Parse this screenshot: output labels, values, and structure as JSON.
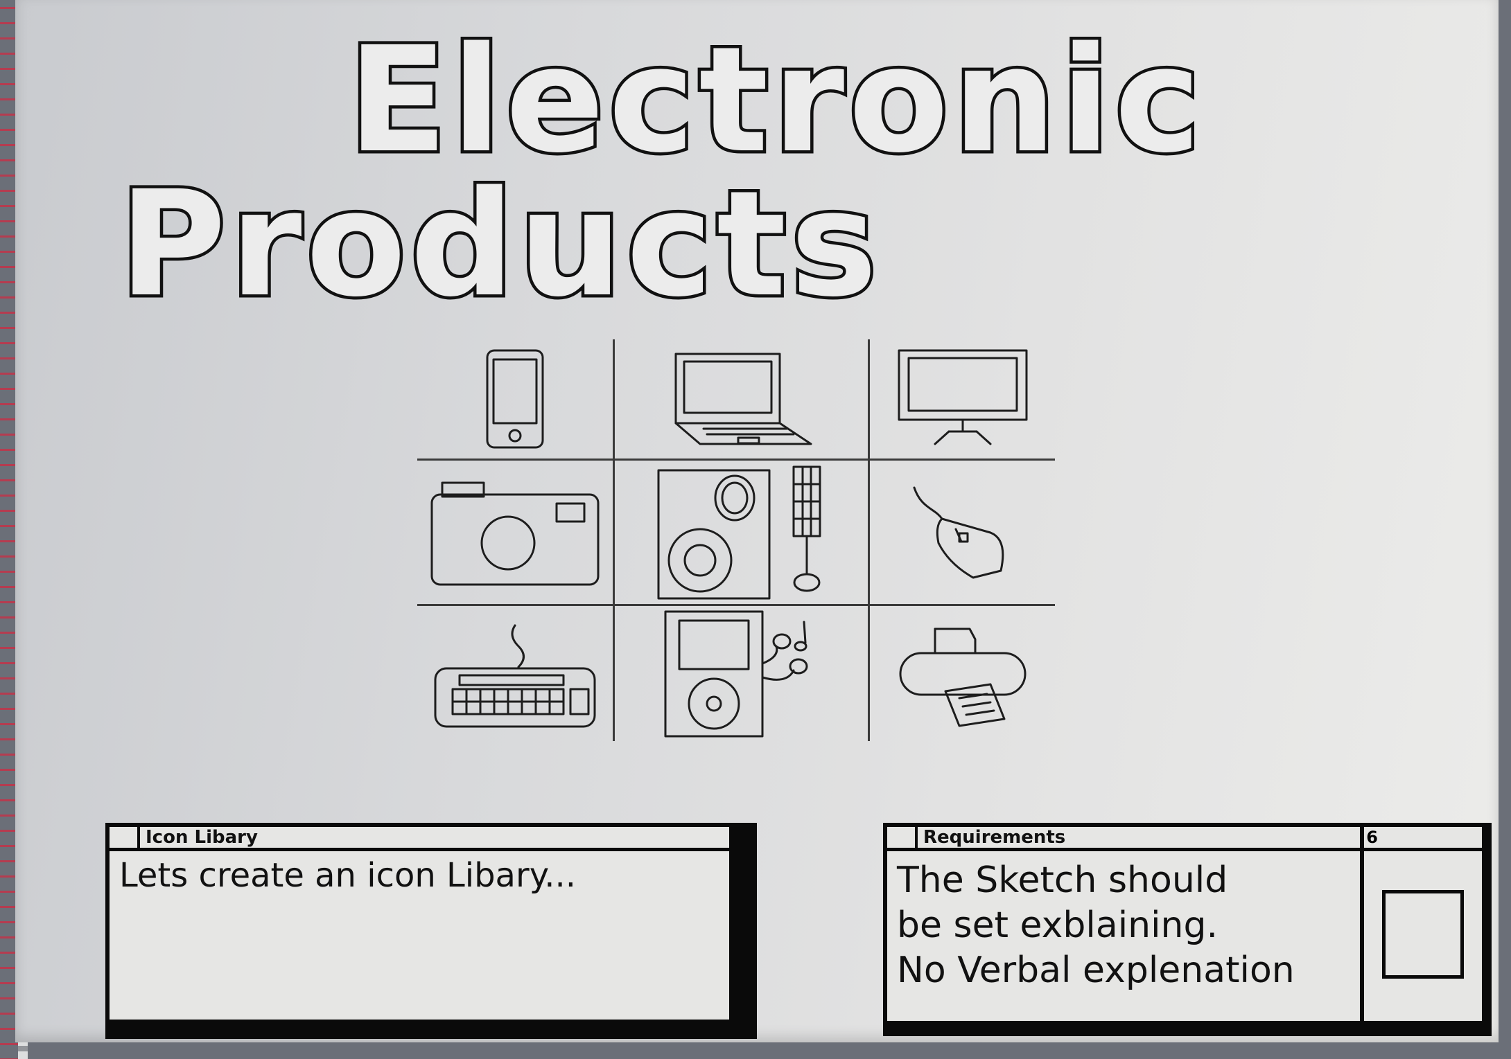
{
  "title": {
    "line1": "Electronic",
    "line2": "Products"
  },
  "icon_grid": [
    [
      "smartphone-icon",
      "laptop-icon",
      "monitor-icon"
    ],
    [
      "camera-icon",
      "speaker-icon",
      "mouse-icon"
    ],
    [
      "keyboard-icon",
      "music-player-icon",
      "printer-icon"
    ]
  ],
  "icon_library_window": {
    "title": "Icon Libary",
    "text": "Lets create an icon Libary..."
  },
  "requirements_window": {
    "title": "Requirements",
    "corner_label": "6",
    "lines": [
      "The Sketch should",
      "be set exblaining.",
      "No Verbal explenation"
    ]
  },
  "colors": {
    "ink": "#111111",
    "paper": "#e2e2e2",
    "spiral": "#c2344a"
  }
}
